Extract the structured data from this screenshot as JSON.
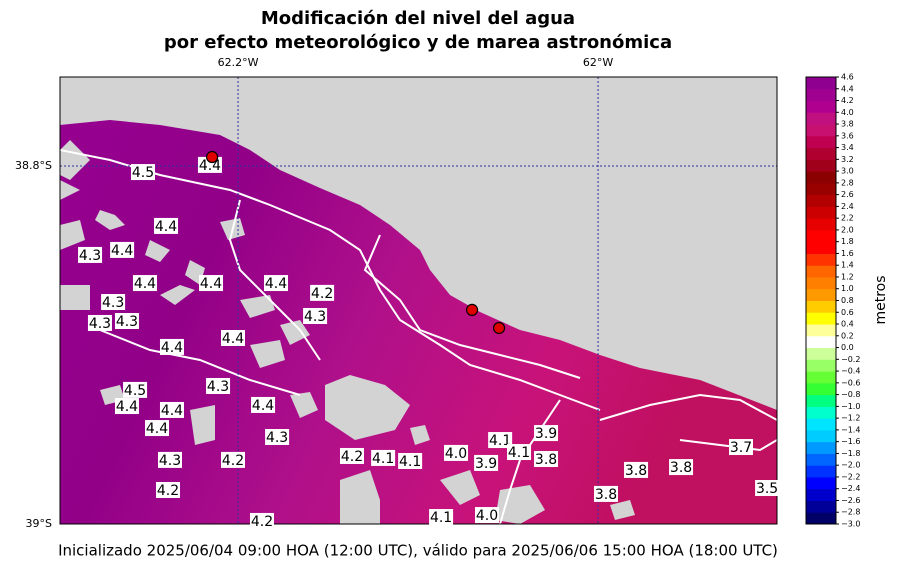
{
  "chart_data": {
    "type": "map",
    "title": [
      "Modificación del nivel del agua",
      "por efecto meteorológico y de marea astronómica"
    ],
    "xlim": [
      -62.2989,
      -61.9006
    ],
    "ylim": [
      -39.0,
      -38.7503
    ],
    "xticks": [
      {
        "value": -62.2,
        "label": "62.2°W"
      },
      {
        "value": -62.0,
        "label": "62°W"
      }
    ],
    "yticks": [
      {
        "value": -38.8,
        "label": "38.8°S"
      },
      {
        "value": -39.0,
        "label": "39°S"
      }
    ],
    "grid": true,
    "stations": {
      "x": [
        -62.2144,
        -62.07,
        -62.055
      ],
      "y": [
        -38.795,
        -38.8804,
        -38.8905
      ],
      "color": "#e00000"
    },
    "contour_labels": {
      "x": [
        -62.2528,
        -62.2156,
        -62.24,
        -62.2644,
        -62.2822,
        -62.2517,
        -62.215,
        -62.2694,
        -62.2617,
        -62.2767,
        -62.2367,
        -62.2028,
        -62.1789,
        -62.1533,
        -62.1572,
        -62.2111,
        -62.2572,
        -62.2617,
        -62.245,
        -62.2367,
        -62.1861,
        -62.1783,
        -62.2028,
        -62.1367,
        -62.1044,
        -62.0789,
        -62.0622,
        -62.0544,
        -62.0439,
        -62.0289,
        -62.0289,
        -61.9789,
        -61.9539,
        -61.9206,
        -61.9061,
        -61.9956,
        -62.0617,
        -62.0872,
        -62.1867,
        -62.2389,
        -62.2378,
        -62.1194
      ],
      "y": [
        -38.8034,
        -38.7994,
        -38.8335,
        -38.8469,
        -38.8497,
        -38.8654,
        -38.8654,
        -38.876,
        -38.8866,
        -38.8877,
        -38.9011,
        -38.8961,
        -38.8654,
        -38.8709,
        -38.8838,
        -38.9229,
        -38.9251,
        -38.9341,
        -38.9464,
        -38.9363,
        -38.9335,
        -38.9514,
        -38.9642,
        -38.962,
        -38.9648,
        -38.9603,
        -38.9659,
        -38.9531,
        -38.9598,
        -38.9492,
        -38.9637,
        -38.9698,
        -38.9682,
        -38.957,
        -38.9799,
        -38.9832,
        -38.995,
        -38.9961,
        -38.9983,
        -38.981,
        -38.9642,
        -38.9631
      ],
      "labels": [
        "4.5",
        "4.4",
        "4.4",
        "4.4",
        "4.3",
        "4.4",
        "4.4",
        "4.3",
        "4.3",
        "4.3",
        "4.4",
        "4.4",
        "4.4",
        "4.2",
        "4.3",
        "4.3",
        "4.5",
        "4.4",
        "4.4",
        "4.4",
        "4.4",
        "4.3",
        "4.2",
        "4.2",
        "4.1",
        "4.0",
        "3.9",
        "4.1",
        "4.1",
        "3.9",
        "3.8",
        "3.8",
        "3.8",
        "3.7",
        "3.5",
        "3.8",
        "4.0",
        "4.1",
        "4.2",
        "4.2",
        "4.3",
        "4.1"
      ]
    },
    "colorbar": {
      "label": "metros",
      "lim": [
        -3.0,
        4.6
      ],
      "colors": [
        "#000066",
        "#000099",
        "#0000cc",
        "#0000ff",
        "#0033ff",
        "#0066ff",
        "#0099ff",
        "#00ccff",
        "#00e5ff",
        "#00ffcc",
        "#00ff80",
        "#33ff33",
        "#66ff33",
        "#99ff66",
        "#ccff99",
        "#ffffff",
        "#ffff99",
        "#ffff00",
        "#ffcc00",
        "#ff9900",
        "#ff8000",
        "#ff6600",
        "#ff3300",
        "#ff0000",
        "#ff0000",
        "#e60000",
        "#cc0000",
        "#b30000",
        "#990000",
        "#8b0000",
        "#a0001a",
        "#b00030",
        "#c00050",
        "#c81070",
        "#c01080",
        "#b00090",
        "#a00090",
        "#900090"
      ],
      "ticks": [
        {
          "value": 4.6,
          "label": "4.6"
        },
        {
          "value": 4.4,
          "label": "4.4"
        },
        {
          "value": 4.2,
          "label": "4.2"
        },
        {
          "value": 4.0,
          "label": "4.0"
        },
        {
          "value": 3.8,
          "label": "3.8"
        },
        {
          "value": 3.6,
          "label": "3.6"
        },
        {
          "value": 3.4,
          "label": "3.4"
        },
        {
          "value": 3.2,
          "label": "3.2"
        },
        {
          "value": 3.0,
          "label": "3.0"
        },
        {
          "value": 2.8,
          "label": "2.8"
        },
        {
          "value": 2.6,
          "label": "2.6"
        },
        {
          "value": 2.4,
          "label": "2.4"
        },
        {
          "value": 2.2,
          "label": "2.2"
        },
        {
          "value": 2.0,
          "label": "2.0"
        },
        {
          "value": 1.8,
          "label": "1.8"
        },
        {
          "value": 1.6,
          "label": "1.6"
        },
        {
          "value": 1.4,
          "label": "1.4"
        },
        {
          "value": 1.2,
          "label": "1.2"
        },
        {
          "value": 1.0,
          "label": "1.0"
        },
        {
          "value": 0.8,
          "label": "0.8"
        },
        {
          "value": 0.6,
          "label": "0.6"
        },
        {
          "value": 0.4,
          "label": "0.4"
        },
        {
          "value": 0.2,
          "label": "0.2"
        },
        {
          "value": 0.0,
          "label": "0.0"
        },
        {
          "value": -0.2,
          "label": "−0.2"
        },
        {
          "value": -0.4,
          "label": "−0.4"
        },
        {
          "value": -0.6,
          "label": "−0.6"
        },
        {
          "value": -0.8,
          "label": "−0.8"
        },
        {
          "value": -1.0,
          "label": "−1.0"
        },
        {
          "value": -1.2,
          "label": "−1.2"
        },
        {
          "value": -1.4,
          "label": "−1.4"
        },
        {
          "value": -1.6,
          "label": "−1.6"
        },
        {
          "value": -1.8,
          "label": "−1.8"
        },
        {
          "value": -2.0,
          "label": "−2.0"
        },
        {
          "value": -2.2,
          "label": "−2.2"
        },
        {
          "value": -2.4,
          "label": "−2.4"
        },
        {
          "value": -2.6,
          "label": "−2.6"
        },
        {
          "value": -2.8,
          "label": "−2.8"
        },
        {
          "value": -3.0,
          "label": "−3.0"
        }
      ]
    },
    "footer": "Inicializado 2025/06/04 09:00 HOA (12:00 UTC), válido para 2025/06/06 15:00 HOA (18:00 UTC)"
  }
}
